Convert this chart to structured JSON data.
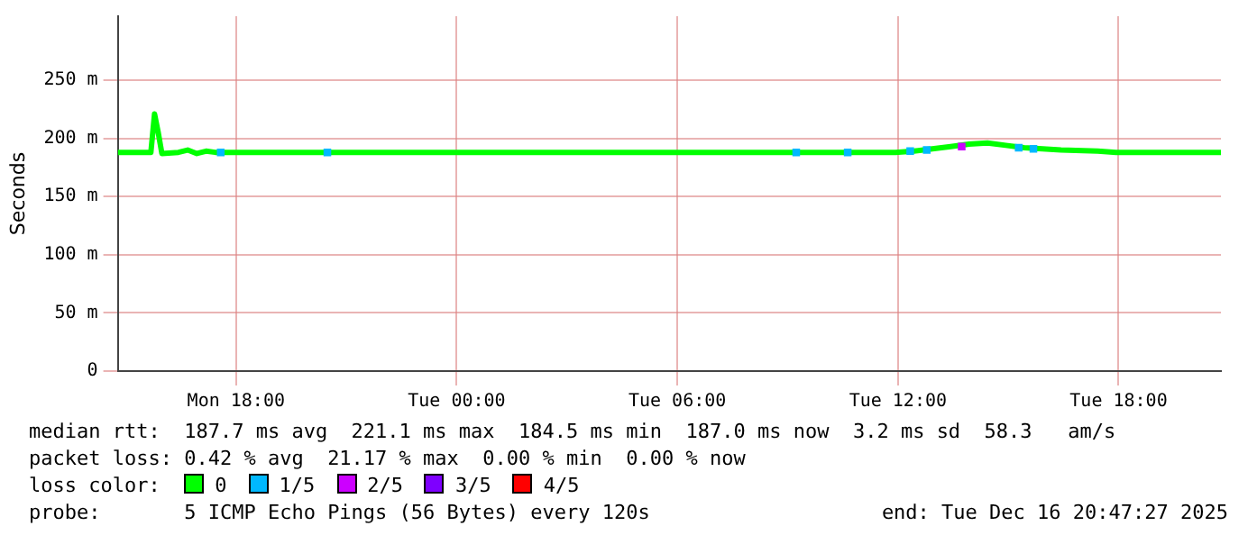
{
  "chart_data": {
    "type": "line",
    "ylabel": "Seconds",
    "legend_title": "loss color:",
    "legend": "bottom",
    "grid": true,
    "marker": "square",
    "xlim": [
      "2025-12-15T14:47",
      "2025-12-16T20:47"
    ],
    "xticks": [
      {
        "value": "2025-12-15T18:00",
        "label": "Mon 18:00"
      },
      {
        "value": "2025-12-16T00:00",
        "label": "Tue 00:00"
      },
      {
        "value": "2025-12-16T06:00",
        "label": "Tue 06:00"
      },
      {
        "value": "2025-12-16T12:00",
        "label": "Tue 12:00"
      },
      {
        "value": "2025-12-16T18:00",
        "label": "Tue 18:00"
      }
    ],
    "ylim": [
      0,
      305
    ],
    "yticks": [
      0,
      {
        "value": 50,
        "label": "50 m"
      },
      {
        "value": 100,
        "label": "100 m"
      },
      {
        "value": 150,
        "label": "150 m"
      },
      {
        "value": 200,
        "label": "200 m"
      },
      {
        "value": 250,
        "label": "250 m"
      }
    ],
    "series": [
      {
        "name": "0",
        "color": "#00ff00",
        "type": "line",
        "marker": "none",
        "x": [
          "2025-12-15T14:47",
          "2025-12-15T15:11",
          "2025-12-15T15:41",
          "2025-12-15T15:47",
          "2025-12-15T15:53",
          "2025-12-15T15:59",
          "2025-12-15T16:26",
          "2025-12-15T16:41",
          "2025-12-15T16:56",
          "2025-12-15T17:11",
          "2025-12-15T17:26",
          "2025-12-15T18:56",
          "2025-12-15T21:26",
          "2025-12-15T23:56",
          "2025-12-16T02:26",
          "2025-12-16T04:56",
          "2025-12-16T07:26",
          "2025-12-16T09:56",
          "2025-12-16T11:56",
          "2025-12-16T12:26",
          "2025-12-16T12:56",
          "2025-12-16T13:26",
          "2025-12-16T13:56",
          "2025-12-16T14:26",
          "2025-12-16T14:56",
          "2025-12-16T15:26",
          "2025-12-16T15:56",
          "2025-12-16T16:26",
          "2025-12-16T17:26",
          "2025-12-16T17:56",
          "2025-12-16T19:26",
          "2025-12-16T20:47"
        ],
        "values": [
          188,
          188,
          188,
          221,
          205,
          187,
          188,
          190,
          187,
          189,
          188,
          188,
          188,
          188,
          188,
          188,
          188,
          188,
          188,
          189,
          191,
          193,
          195,
          196,
          194,
          192,
          191,
          190,
          189,
          188,
          188,
          188
        ]
      },
      {
        "name": "1/5",
        "color": "#00b8ff",
        "type": "scatter",
        "x": [
          "2025-12-15T17:35",
          "2025-12-15T20:29",
          "2025-12-16T09:14",
          "2025-12-16T10:38",
          "2025-12-16T12:20",
          "2025-12-16T12:47",
          "2025-12-16T15:17",
          "2025-12-16T15:41"
        ],
        "values": [
          188,
          188,
          188,
          188,
          189,
          190,
          192,
          191
        ]
      },
      {
        "name": "2/5",
        "color": "#cc00ff",
        "type": "scatter",
        "x": [
          "2025-12-16T13:44"
        ],
        "values": [
          193
        ]
      },
      {
        "name": "3/5",
        "color": "#7e00ff",
        "type": "scatter"
      },
      {
        "name": "4/5",
        "color": "#ff0000",
        "type": "scatter"
      }
    ],
    "annotations": [
      "median rtt:  187.7 ms avg  221.1 ms max  184.5 ms min  187.0 ms now  3.2 ms sd  58.3   am/s",
      "packet loss: 0.42 % avg  21.17 % max  0.00 % min  0.00 % now",
      "probe:       5 ICMP Echo Pings (56 Bytes) every 120s",
      "end: Tue Dec 16 20:47:27 2025"
    ]
  }
}
